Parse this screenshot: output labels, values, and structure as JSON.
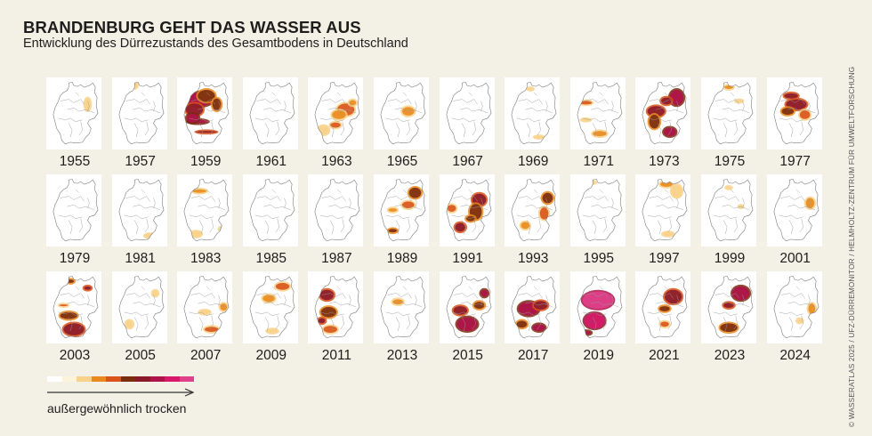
{
  "header": {
    "title": "BRANDENBURG GEHT DAS WASSER AUS",
    "subtitle": "Entwicklung des Dürrezustands des Gesamtbodens in Deutschland"
  },
  "legend": {
    "label": "außergewöhnlich trocken",
    "colors": [
      "#ffffff",
      "#fdf3d9",
      "#f8d28a",
      "#e98a1f",
      "#d9531a",
      "#7a2c0e",
      "#8a1a2a",
      "#b0124a",
      "#d9186a",
      "#e0408a"
    ]
  },
  "credit": "© WASSERATLAS 2025 / UFZ-DÜRREMONITOR / HELMHOLTZ-ZENTRUM FÜR UMWELTFORSCHUNG",
  "chart_data": {
    "type": "heatmap",
    "title": "BRANDENBURG GEHT DAS WASSER AUS",
    "subtitle": "Entwicklung des Dürrezustands des Gesamtbodens in Deutschland",
    "description": "Small-multiple maps of Germany showing total-soil drought severity in selected years; intensity scale from light (dry) to pink (außergewöhnlich trocken)",
    "layout": {
      "rows": 3,
      "cols": 12
    },
    "legend_label": "außergewöhnlich trocken",
    "years": [
      1955,
      1957,
      1959,
      1961,
      1963,
      1965,
      1967,
      1969,
      1971,
      1973,
      1975,
      1977,
      1979,
      1981,
      1983,
      1985,
      1987,
      1989,
      1991,
      1993,
      1995,
      1997,
      1999,
      2001,
      2003,
      2005,
      2007,
      2009,
      2011,
      2013,
      2015,
      2017,
      2019,
      2021,
      2023,
      2024
    ],
    "severity_estimate": [
      0.02,
      0.02,
      0.75,
      0.0,
      0.35,
      0.08,
      0.0,
      0.03,
      0.25,
      0.7,
      0.1,
      0.55,
      0.0,
      0.04,
      0.15,
      0.0,
      0.0,
      0.4,
      0.55,
      0.45,
      0.03,
      0.18,
      0.05,
      0.08,
      0.6,
      0.05,
      0.3,
      0.35,
      0.6,
      0.1,
      0.65,
      0.75,
      0.95,
      0.55,
      0.7,
      0.12
    ],
    "maps": [
      {
        "year": "1955",
        "blobs": [
          [
            44,
            28,
            3,
            7
          ]
        ]
      },
      {
        "year": "1957",
        "blobs": [
          [
            22,
            5,
            3,
            4
          ]
        ]
      },
      {
        "year": "1959",
        "blobs": [
          [
            22,
            22,
            16,
            8
          ],
          [
            16,
            34,
            10,
            7
          ],
          [
            30,
            18,
            10,
            7
          ],
          [
            20,
            48,
            12,
            2
          ],
          [
            30,
            60,
            12,
            1
          ],
          [
            42,
            28,
            5,
            7
          ],
          [
            14,
            44,
            7,
            5
          ]
        ]
      },
      {
        "year": "1961",
        "blobs": []
      },
      {
        "year": "1963",
        "blobs": [
          [
            40,
            34,
            10,
            7
          ],
          [
            32,
            40,
            8,
            5
          ],
          [
            14,
            58,
            6,
            5
          ],
          [
            28,
            52,
            6,
            3
          ],
          [
            48,
            26,
            4,
            3
          ]
        ]
      },
      {
        "year": "1965",
        "blobs": [
          [
            36,
            36,
            7,
            5
          ]
        ]
      },
      {
        "year": "1967",
        "blobs": []
      },
      {
        "year": "1969",
        "blobs": [
          [
            36,
            66,
            5,
            1
          ],
          [
            26,
            10,
            3,
            1
          ]
        ]
      },
      {
        "year": "1971",
        "blobs": [
          [
            14,
            26,
            7,
            2
          ],
          [
            30,
            62,
            8,
            3
          ],
          [
            14,
            46,
            5,
            1
          ]
        ]
      },
      {
        "year": "1973",
        "blobs": [
          [
            44,
            20,
            8,
            9
          ],
          [
            20,
            36,
            10,
            6
          ],
          [
            18,
            48,
            6,
            8
          ],
          [
            36,
            60,
            7,
            5
          ],
          [
            32,
            24,
            6,
            4
          ]
        ]
      },
      {
        "year": "1975",
        "blobs": [
          [
            28,
            8,
            5,
            2
          ],
          [
            40,
            24,
            4,
            1
          ]
        ]
      },
      {
        "year": "1977",
        "blobs": [
          [
            30,
            28,
            12,
            6
          ],
          [
            20,
            36,
            7,
            4
          ],
          [
            40,
            40,
            6,
            5
          ],
          [
            24,
            18,
            8,
            3
          ]
        ]
      },
      {
        "year": "1979",
        "blobs": []
      },
      {
        "year": "1981",
        "blobs": [
          [
            40,
            68,
            6,
            2
          ]
        ]
      },
      {
        "year": "1983",
        "blobs": [
          [
            22,
            16,
            8,
            2
          ],
          [
            18,
            66,
            6,
            3
          ],
          [
            48,
            60,
            3,
            2
          ]
        ]
      },
      {
        "year": "1985",
        "blobs": []
      },
      {
        "year": "1987",
        "blobs": []
      },
      {
        "year": "1989",
        "blobs": [
          [
            44,
            18,
            7,
            6
          ],
          [
            36,
            32,
            7,
            4
          ],
          [
            18,
            38,
            5,
            2
          ],
          [
            18,
            62,
            5,
            2
          ]
        ]
      },
      {
        "year": "1991",
        "blobs": [
          [
            42,
            26,
            8,
            7
          ],
          [
            38,
            40,
            7,
            9
          ],
          [
            10,
            36,
            5,
            4
          ],
          [
            20,
            58,
            6,
            5
          ],
          [
            32,
            48,
            5,
            3
          ]
        ]
      },
      {
        "year": "1993",
        "blobs": [
          [
            46,
            24,
            6,
            6
          ],
          [
            42,
            42,
            5,
            7
          ],
          [
            20,
            56,
            5,
            4
          ],
          [
            14,
            10,
            4,
            2
          ]
        ]
      },
      {
        "year": "1995",
        "blobs": [
          [
            22,
            6,
            3,
            1
          ]
        ]
      },
      {
        "year": "1997",
        "blobs": [
          [
            32,
            8,
            7,
            3
          ],
          [
            44,
            16,
            6,
            7
          ],
          [
            34,
            66,
            6,
            2
          ]
        ]
      },
      {
        "year": "1999",
        "blobs": [
          [
            28,
            12,
            3,
            1
          ],
          [
            42,
            34,
            2,
            1
          ]
        ]
      },
      {
        "year": "2001",
        "blobs": [
          [
            46,
            30,
            5,
            6
          ]
        ]
      },
      {
        "year": "2003",
        "blobs": [
          [
            28,
            64,
            12,
            7
          ],
          [
            22,
            48,
            10,
            4
          ],
          [
            16,
            36,
            5,
            1
          ],
          [
            44,
            16,
            4,
            2
          ],
          [
            24,
            8,
            4,
            2
          ]
        ]
      },
      {
        "year": "2005",
        "blobs": [
          [
            16,
            58,
            4,
            4
          ],
          [
            46,
            22,
            3,
            3
          ]
        ]
      },
      {
        "year": "2007",
        "blobs": [
          [
            36,
            64,
            8,
            3
          ],
          [
            50,
            38,
            4,
            4
          ],
          [
            28,
            44,
            6,
            2
          ]
        ]
      },
      {
        "year": "2009",
        "blobs": [
          [
            42,
            14,
            8,
            4
          ],
          [
            26,
            28,
            7,
            4
          ],
          [
            30,
            66,
            6,
            2
          ]
        ]
      },
      {
        "year": "2011",
        "blobs": [
          [
            18,
            24,
            8,
            6
          ],
          [
            20,
            44,
            9,
            6
          ],
          [
            22,
            64,
            8,
            4
          ],
          [
            12,
            54,
            4,
            3
          ]
        ]
      },
      {
        "year": "2013",
        "blobs": [
          [
            24,
            32,
            6,
            3
          ]
        ]
      },
      {
        "year": "2015",
        "blobs": [
          [
            28,
            58,
            12,
            8
          ],
          [
            20,
            42,
            8,
            5
          ],
          [
            42,
            36,
            6,
            4
          ],
          [
            48,
            22,
            4,
            4
          ]
        ]
      },
      {
        "year": "2017",
        "blobs": [
          [
            24,
            40,
            12,
            8
          ],
          [
            38,
            36,
            8,
            5
          ],
          [
            16,
            58,
            6,
            4
          ],
          [
            36,
            62,
            7,
            4
          ]
        ]
      },
      {
        "year": "2019",
        "blobs": [
          [
            28,
            30,
            18,
            10
          ],
          [
            24,
            54,
            12,
            9
          ],
          [
            14,
            68,
            6,
            2
          ]
        ]
      },
      {
        "year": "2021",
        "blobs": [
          [
            40,
            26,
            10,
            8
          ],
          [
            30,
            40,
            6,
            3
          ],
          [
            30,
            58,
            5,
            3
          ]
        ]
      },
      {
        "year": "2023",
        "blobs": [
          [
            42,
            22,
            10,
            8
          ],
          [
            28,
            36,
            6,
            3
          ],
          [
            28,
            62,
            10,
            5
          ]
        ]
      },
      {
        "year": "2024",
        "blobs": [
          [
            48,
            40,
            4,
            6
          ],
          [
            34,
            54,
            3,
            2
          ]
        ]
      }
    ]
  }
}
